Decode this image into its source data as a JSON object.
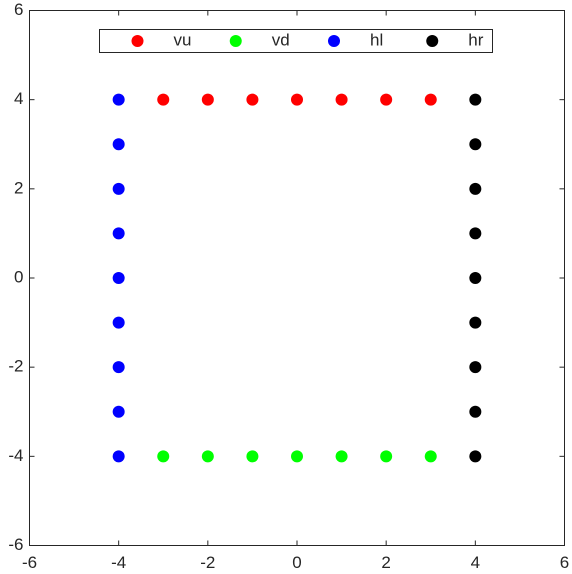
{
  "chart_data": {
    "type": "scatter",
    "series": [
      {
        "name": "vu",
        "color": "#ff0000",
        "x": [
          -3,
          -2,
          -1,
          0,
          1,
          2,
          3
        ],
        "y": [
          4,
          4,
          4,
          4,
          4,
          4,
          4
        ]
      },
      {
        "name": "vd",
        "color": "#00ff00",
        "x": [
          -3,
          -2,
          -1,
          0,
          1,
          2,
          3
        ],
        "y": [
          -4,
          -4,
          -4,
          -4,
          -4,
          -4,
          -4
        ]
      },
      {
        "name": "hl",
        "color": "#0000ff",
        "x": [
          -4,
          -4,
          -4,
          -4,
          -4,
          -4,
          -4,
          -4,
          -4
        ],
        "y": [
          -4,
          -3,
          -2,
          -1,
          0,
          1,
          2,
          3,
          4
        ]
      },
      {
        "name": "hr",
        "color": "#000000",
        "x": [
          4,
          4,
          4,
          4,
          4,
          4,
          4,
          4,
          4
        ],
        "y": [
          -4,
          -3,
          -2,
          -1,
          0,
          1,
          2,
          3,
          4
        ]
      }
    ],
    "xlim": [
      -6,
      6
    ],
    "ylim": [
      -6,
      6
    ],
    "xticks": [
      -6,
      -4,
      -2,
      0,
      2,
      4,
      6
    ],
    "yticks": [
      -6,
      -4,
      -2,
      0,
      2,
      4,
      6
    ],
    "grid": false,
    "legend": "top"
  }
}
